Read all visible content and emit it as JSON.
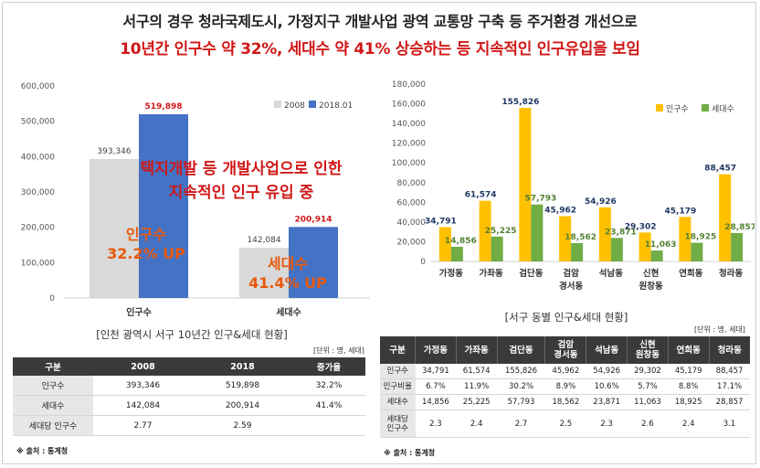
{
  "headline": {
    "line1": "서구의 경우 청라국제도시, 가정지구 개발사업 광역 교통망 구축 등 주거환경 개선으로",
    "line2": "10년간 인구수 약 32%, 세대수 약 41% 상승하는 등 지속적인 인구유입을 보임"
  },
  "overlay": {
    "line1": "택지개발 등 개발사업으로 인한",
    "line2": "지속적인 인구 유입 중",
    "pop_label": "인구수",
    "pop_change": "32.2% UP",
    "hh_label": "세대수",
    "hh_change": "41.4% UP"
  },
  "captions": {
    "left": "[인천 광역시 서구 10년간 인구&세대 현황]",
    "right": "[서구 동별 인구&세대 현황]",
    "unit_left": "[단위 : 명, 세대]",
    "unit_right": "[단위 : 명, 세대]",
    "source_left": "※ 출처 : 통계청",
    "source_right": "※ 출처 : 통계청"
  },
  "colors": {
    "y2008": "#d9d9d9",
    "y2018": "#4472c4",
    "population": "#ffc000",
    "households": "#70ad47",
    "highlight": "#e8590c"
  },
  "chart_data": [
    {
      "type": "bar",
      "categories": [
        "인구수",
        "세대수"
      ],
      "series": [
        {
          "name": "2008",
          "values": [
            393346,
            142084
          ],
          "labels": [
            "393,346",
            "142,084"
          ]
        },
        {
          "name": "2018.01",
          "values": [
            519898,
            200914
          ],
          "labels": [
            "519,898",
            "200,914"
          ]
        }
      ],
      "ylim": [
        0,
        600000
      ],
      "yticks": [
        "0",
        "100,000",
        "200,000",
        "300,000",
        "400,000",
        "500,000",
        "600,000"
      ],
      "legend_position": "top-right",
      "grid": false
    },
    {
      "type": "bar",
      "categories": [
        "가정동",
        "가좌동",
        "검단동",
        "검암경서동",
        "석남동",
        "신현원창동",
        "연희동",
        "청라동"
      ],
      "category_lines": [
        [
          "가정동"
        ],
        [
          "가좌동"
        ],
        [
          "검단동"
        ],
        [
          "검암",
          "경서동"
        ],
        [
          "석남동"
        ],
        [
          "신현",
          "원창동"
        ],
        [
          "연희동"
        ],
        [
          "청라동"
        ]
      ],
      "series": [
        {
          "name": "인구수",
          "values": [
            34791,
            61574,
            155826,
            45962,
            54926,
            29302,
            45179,
            88457
          ],
          "labels": [
            "34,791",
            "61,574",
            "155,826",
            "45,962",
            "54,926",
            "29,302",
            "45,179",
            "88,457"
          ]
        },
        {
          "name": "세대수",
          "values": [
            14856,
            25225,
            57793,
            18562,
            23871,
            11063,
            18925,
            28857
          ],
          "labels": [
            "14,856",
            "25,225",
            "57,793",
            "18,562",
            "23,871",
            "11,063",
            "18,925",
            "28,857"
          ]
        }
      ],
      "ylim": [
        0,
        180000
      ],
      "yticks": [
        "0",
        "20,000",
        "40,000",
        "60,000",
        "80,000",
        "100,000",
        "120,000",
        "140,000",
        "160,000",
        "180,000"
      ],
      "legend_position": "top-right",
      "grid": false
    }
  ],
  "table_left": {
    "headers": [
      "구분",
      "2008",
      "2018",
      "증가율"
    ],
    "rows": [
      [
        "인구수",
        "393,346",
        "519,898",
        "32.2%"
      ],
      [
        "세대수",
        "142,084",
        "200,914",
        "41.4%"
      ],
      [
        "세대당 인구수",
        "2.77",
        "2.59",
        ""
      ]
    ]
  },
  "table_right": {
    "headers": [
      "구분",
      "가정동",
      "가좌동",
      "검단동",
      "검암\n경서동",
      "석남동",
      "신현\n원창동",
      "연희동",
      "청라동"
    ],
    "rows": [
      [
        "인구수",
        "34,791",
        "61,574",
        "155,826",
        "45,962",
        "54,926",
        "29,302",
        "45,179",
        "88,457"
      ],
      [
        "인구비율",
        "6.7%",
        "11.9%",
        "30.2%",
        "8.9%",
        "10.6%",
        "5.7%",
        "8.8%",
        "17.1%"
      ],
      [
        "세대수",
        "14,856",
        "25,225",
        "57,793",
        "18,562",
        "23,871",
        "11,063",
        "18,925",
        "28,857"
      ],
      [
        "세대당\n인구수",
        "2.3",
        "2.4",
        "2.7",
        "2.5",
        "2.3",
        "2.6",
        "2.4",
        "3.1"
      ]
    ]
  }
}
